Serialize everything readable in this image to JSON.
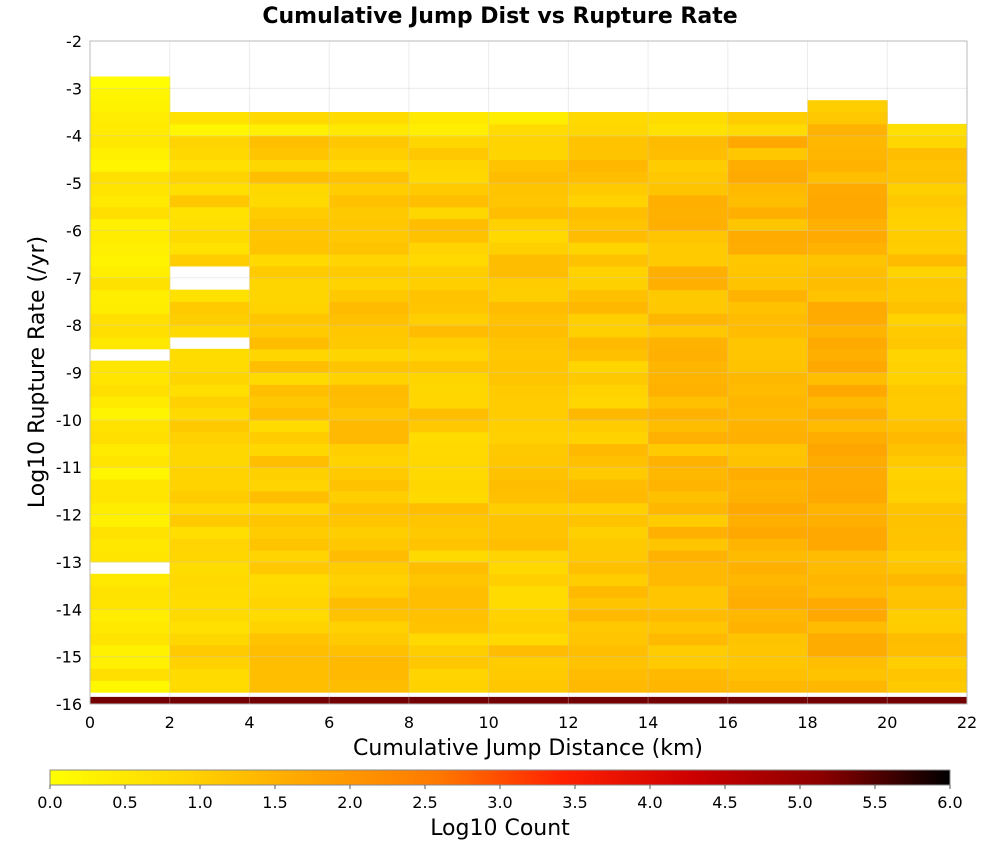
{
  "chart_data": {
    "type": "heatmap",
    "title": "Cumulative Jump Dist vs Rupture Rate",
    "xlabel": "Cumulative Jump Distance (km)",
    "ylabel": "Log10 Rupture Rate (/yr)",
    "xlim": [
      0,
      22
    ],
    "ylim": [
      -16,
      -2
    ],
    "x_ticks": [
      "0",
      "2",
      "4",
      "6",
      "8",
      "10",
      "12",
      "14",
      "16",
      "18",
      "20",
      "22"
    ],
    "y_ticks": [
      "-2",
      "-3",
      "-4",
      "-5",
      "-6",
      "-7",
      "-8",
      "-9",
      "-10",
      "-11",
      "-12",
      "-13",
      "-14",
      "-15",
      "-16"
    ],
    "x_bin_width": 2,
    "y_bin_width": 0.25,
    "grid": true,
    "colorbar": {
      "label": "Log10 Count",
      "range": [
        0,
        6
      ],
      "ticks": [
        "0.0",
        "0.5",
        "1.0",
        "1.5",
        "2.0",
        "2.5",
        "3.0",
        "3.5",
        "4.0",
        "4.5",
        "5.0",
        "5.5",
        "6.0"
      ],
      "colors": [
        "#ffff00",
        "#ffd700",
        "#ffa500",
        "#ff7a00",
        "#ff2000",
        "#cc0000",
        "#8b0000",
        "#000000"
      ]
    },
    "columns": [
      {
        "x_start": 0,
        "top": -2.75,
        "level": 0.45
      },
      {
        "x_start": 2,
        "top": -3.6,
        "level": 0.85
      },
      {
        "x_start": 4,
        "top": -3.6,
        "level": 1.05
      },
      {
        "x_start": 6,
        "top": -3.6,
        "level": 1.1
      },
      {
        "x_start": 8,
        "top": -3.6,
        "level": 1.05
      },
      {
        "x_start": 10,
        "top": -3.6,
        "level": 1.05
      },
      {
        "x_start": 12,
        "top": -3.6,
        "level": 1.15
      },
      {
        "x_start": 14,
        "top": -3.6,
        "level": 1.3
      },
      {
        "x_start": 16,
        "top": -3.6,
        "level": 1.4
      },
      {
        "x_start": 18,
        "top": -3.3,
        "level": 1.45
      },
      {
        "x_start": 20,
        "top": -3.85,
        "level": 1.15
      }
    ],
    "empty_bins": [
      {
        "x_start": 0,
        "y_start": -8.75
      },
      {
        "x_start": 0,
        "y_start": -13.25
      },
      {
        "x_start": 2,
        "y_start": -7.25
      },
      {
        "x_start": 2,
        "y_start": -7.0
      },
      {
        "x_start": 2,
        "y_start": -8.5
      }
    ],
    "bottom_row": {
      "y_start": -16,
      "level": 5.3
    }
  }
}
